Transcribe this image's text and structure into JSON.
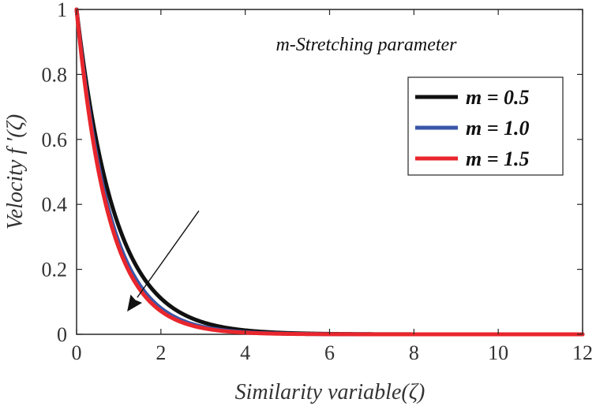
{
  "chart_data": {
    "type": "line",
    "title": "",
    "xlabel": "Similarity variable(ζ)",
    "ylabel": "Velocity  f ′(ζ)",
    "xlim": [
      0,
      12
    ],
    "ylim": [
      0,
      1
    ],
    "xticks": [
      0,
      2,
      4,
      6,
      8,
      10,
      12
    ],
    "yticks": [
      0,
      0.2,
      0.4,
      0.6,
      0.8,
      1
    ],
    "xtick_labels": [
      "0",
      "2",
      "4",
      "6",
      "8",
      "10",
      "12"
    ],
    "ytick_labels": [
      "0",
      "0.2",
      "0.4",
      "0.6",
      "0.8",
      "1"
    ],
    "grid": false,
    "legend_position": "top-right",
    "annotation": "m-Stretching parameter",
    "arrow": {
      "from": [
        2.9,
        0.38
      ],
      "to": [
        1.2,
        0.07
      ]
    },
    "series": [
      {
        "name": "m = 0.5",
        "color": "#111111",
        "decay_rate": 1.1,
        "x": [
          0,
          0.5,
          1,
          1.5,
          2,
          2.5,
          3,
          4,
          5,
          6,
          8,
          10,
          12
        ],
        "y": [
          1,
          0.577,
          0.333,
          0.192,
          0.111,
          0.064,
          0.037,
          0.012,
          0.004,
          0.001,
          0.0,
          0.0,
          0.0
        ]
      },
      {
        "name": "m = 1.0",
        "color": "#3a56a8",
        "decay_rate": 1.26,
        "x": [
          0,
          0.5,
          1,
          1.5,
          2,
          2.5,
          3,
          4,
          5,
          6,
          8,
          10,
          12
        ],
        "y": [
          1,
          0.533,
          0.284,
          0.151,
          0.08,
          0.043,
          0.023,
          0.006,
          0.002,
          0.001,
          0.0,
          0.0,
          0.0
        ]
      },
      {
        "name": "m = 1.5",
        "color": "#e8262c",
        "decay_rate": 1.32,
        "x": [
          0,
          0.5,
          1,
          1.5,
          2,
          2.5,
          3,
          4,
          5,
          6,
          8,
          10,
          12
        ],
        "y": [
          1,
          0.517,
          0.267,
          0.138,
          0.071,
          0.037,
          0.019,
          0.005,
          0.001,
          0.0,
          0.0,
          0.0,
          0.0
        ]
      }
    ]
  }
}
